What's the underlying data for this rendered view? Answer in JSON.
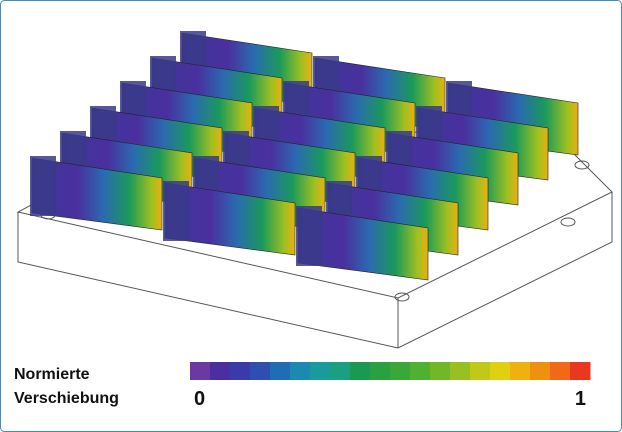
{
  "legend": {
    "title_lines": [
      "Normierte",
      "Verschiebung"
    ],
    "min": 0,
    "max": 1,
    "colors": [
      "#6a3aa0",
      "#4a2f9e",
      "#3a3aa8",
      "#2f4fb0",
      "#1f6db5",
      "#1a8aae",
      "#1a9a9a",
      "#1aa080",
      "#1a9a50",
      "#2aa040",
      "#3aa838",
      "#50b030",
      "#70b828",
      "#98c020",
      "#c0c818",
      "#e0d010",
      "#f0b010",
      "#f09010",
      "#f06818",
      "#e83820"
    ]
  }
}
